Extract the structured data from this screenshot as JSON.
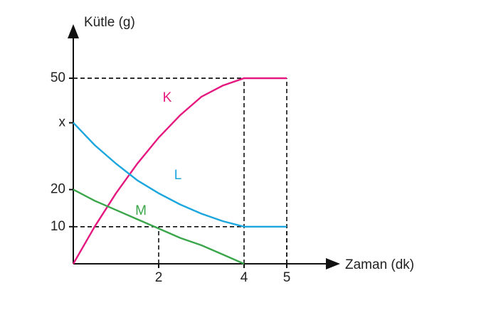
{
  "chart_data": {
    "type": "line",
    "y_label": "Kütle (g)",
    "x_label": "Zaman (dk)",
    "x": [
      0,
      0.5,
      1,
      1.5,
      2,
      2.5,
      3,
      3.5,
      4,
      4.5,
      5
    ],
    "series": [
      {
        "name": "K",
        "color": "#e5187f",
        "values": [
          0,
          10,
          19,
          27,
          34,
          40,
          45,
          48,
          50,
          50,
          50
        ]
      },
      {
        "name": "L",
        "color": "#1ca6de",
        "values": [
          38,
          32,
          27,
          22.5,
          19,
          16,
          13.5,
          11.5,
          10,
          10,
          10
        ]
      },
      {
        "name": "M",
        "color": "#3aa64a",
        "values": [
          20,
          17,
          14.5,
          12,
          9.5,
          7,
          5,
          2.5,
          0,
          null,
          null
        ]
      }
    ],
    "xlim": [
      0,
      6
    ],
    "ylim": [
      0,
      60
    ],
    "xticks": [
      2,
      4,
      5
    ],
    "yticks": [
      10,
      20,
      {
        "value": 38,
        "label": "x"
      },
      50
    ],
    "guides": [
      {
        "x": 5,
        "y": 50
      },
      {
        "x": 4,
        "y": 50
      },
      {
        "x": 5,
        "y": 10
      },
      {
        "x": 2,
        "y": 10
      }
    ]
  }
}
